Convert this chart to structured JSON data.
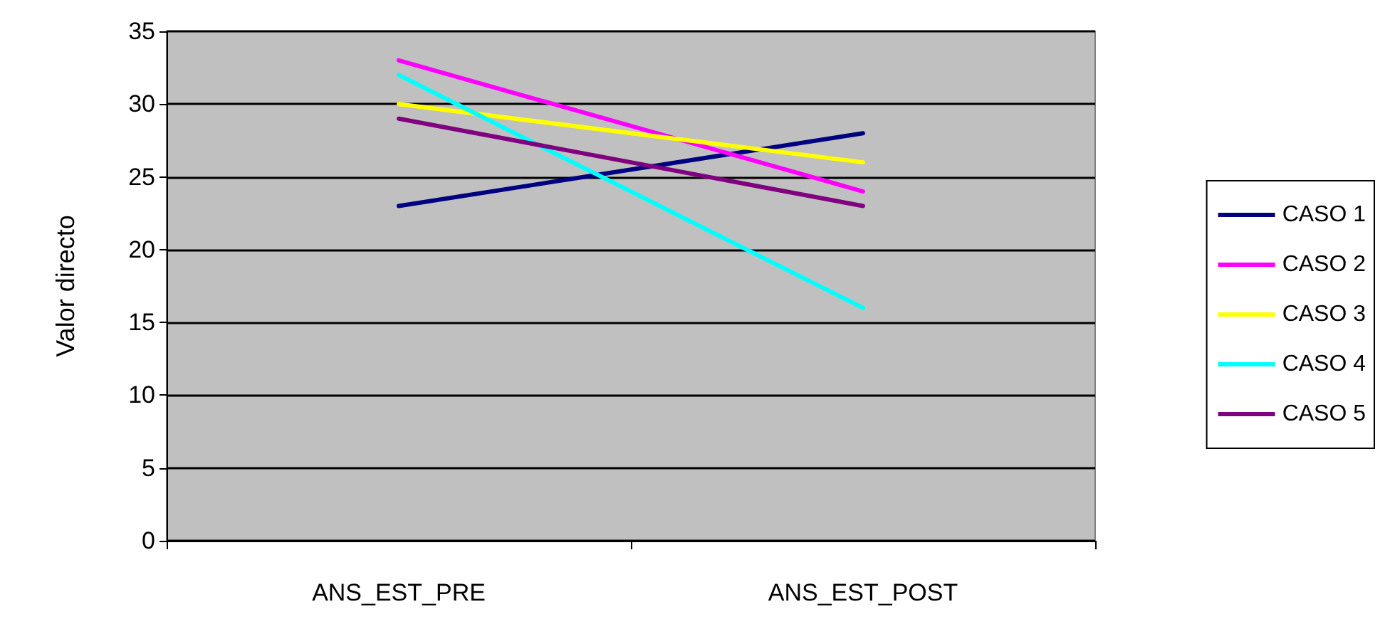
{
  "chart_data": {
    "type": "line",
    "ylabel": "Valor directo",
    "categories": [
      "ANS_EST_PRE",
      "ANS_EST_POST"
    ],
    "series": [
      {
        "name": "CASO 1",
        "color": "#000080",
        "values": [
          23,
          28
        ]
      },
      {
        "name": "CASO 2",
        "color": "#ff00ff",
        "values": [
          33,
          24
        ]
      },
      {
        "name": "CASO 3",
        "color": "#ffff00",
        "values": [
          30,
          26
        ]
      },
      {
        "name": "CASO 4",
        "color": "#00ffff",
        "values": [
          32,
          16
        ]
      },
      {
        "name": "CASO 5",
        "color": "#800080",
        "values": [
          29,
          23
        ]
      }
    ],
    "ylim": [
      0,
      35
    ],
    "yticks": [
      0,
      5,
      10,
      15,
      20,
      25,
      30,
      35
    ],
    "grid": "y",
    "legend": "right",
    "marker": "none",
    "line_style": "solid"
  }
}
